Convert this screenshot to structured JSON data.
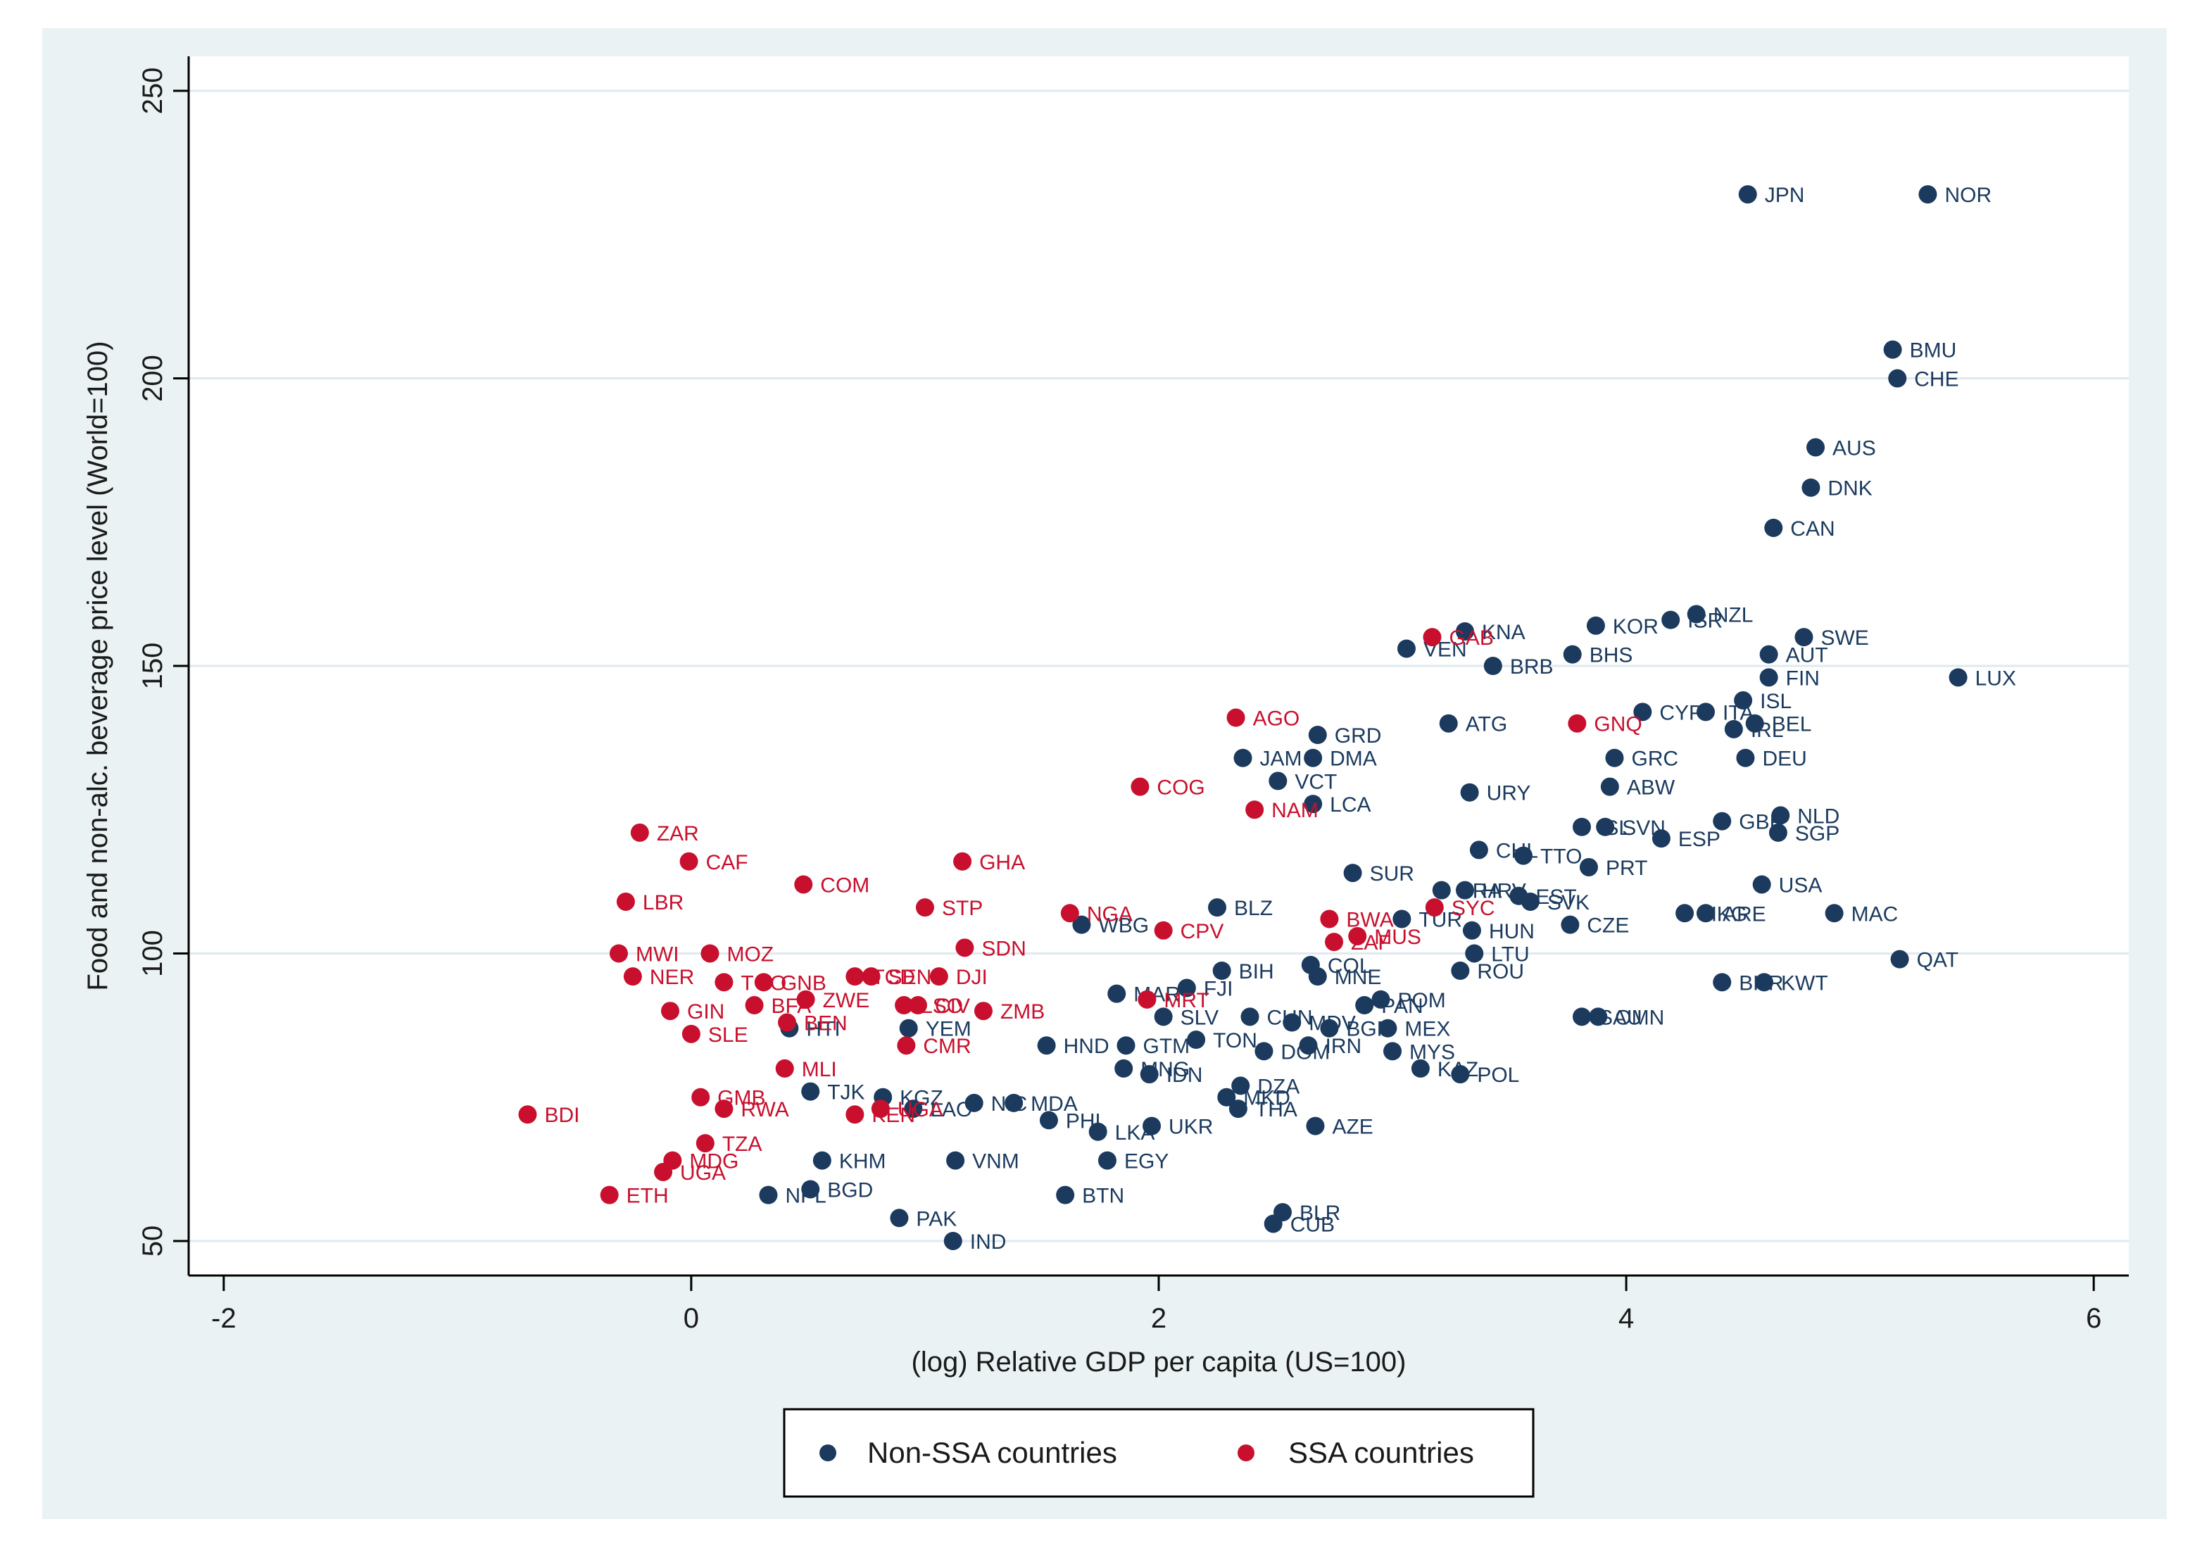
{
  "chart_data": {
    "type": "scatter",
    "title": "",
    "xlabel": "(log) Relative GDP per capita (US=100)",
    "ylabel": "Food and non-alc. beverage price level (World=100)",
    "xlim": [
      -2.15,
      6.15
    ],
    "ylim": [
      44,
      256
    ],
    "xticks": [
      -2,
      0,
      2,
      4,
      6
    ],
    "yticks": [
      50,
      100,
      150,
      200,
      250
    ],
    "grid": "horizontal",
    "legend_position": "bottom",
    "colors": {
      "non_ssa": "#1b3a5e",
      "ssa": "#c8102e",
      "background": "#eaf2f3",
      "grid": "#dfe9ee"
    },
    "series": [
      {
        "name": "Non-SSA countries",
        "color": "#1b3a5e",
        "points": [
          {
            "label": "JPN",
            "x": 4.52,
            "y": 232
          },
          {
            "label": "NOR",
            "x": 5.29,
            "y": 232
          },
          {
            "label": "BMU",
            "x": 5.14,
            "y": 205
          },
          {
            "label": "CHE",
            "x": 5.16,
            "y": 200
          },
          {
            "label": "AUS",
            "x": 4.81,
            "y": 188
          },
          {
            "label": "DNK",
            "x": 4.79,
            "y": 181
          },
          {
            "label": "CAN",
            "x": 4.63,
            "y": 174
          },
          {
            "label": "NZL",
            "x": 4.3,
            "y": 159
          },
          {
            "label": "ISR",
            "x": 4.19,
            "y": 158
          },
          {
            "label": "KOR",
            "x": 3.87,
            "y": 157
          },
          {
            "label": "KNA",
            "x": 3.31,
            "y": 156
          },
          {
            "label": "SWE",
            "x": 4.76,
            "y": 155
          },
          {
            "label": "AUT",
            "x": 4.61,
            "y": 152
          },
          {
            "label": "VEN",
            "x": 3.06,
            "y": 153
          },
          {
            "label": "BHS",
            "x": 3.77,
            "y": 152
          },
          {
            "label": "BRB",
            "x": 3.43,
            "y": 150
          },
          {
            "label": "FIN",
            "x": 4.61,
            "y": 148
          },
          {
            "label": "LUX",
            "x": 5.42,
            "y": 148
          },
          {
            "label": "ISL",
            "x": 4.5,
            "y": 144
          },
          {
            "label": "CYP",
            "x": 4.07,
            "y": 142
          },
          {
            "label": "ITA",
            "x": 4.34,
            "y": 142
          },
          {
            "label": "BEL",
            "x": 4.55,
            "y": 140
          },
          {
            "label": "IRL",
            "x": 4.46,
            "y": 139
          },
          {
            "label": "ATG",
            "x": 3.24,
            "y": 140
          },
          {
            "label": "GRD",
            "x": 2.68,
            "y": 138
          },
          {
            "label": "DEU",
            "x": 4.51,
            "y": 134
          },
          {
            "label": "GRC",
            "x": 3.95,
            "y": 134
          },
          {
            "label": "JAM",
            "x": 2.36,
            "y": 134
          },
          {
            "label": "DMA",
            "x": 2.66,
            "y": 134
          },
          {
            "label": "VCT",
            "x": 2.51,
            "y": 130
          },
          {
            "label": "ABW",
            "x": 3.93,
            "y": 129
          },
          {
            "label": "URY",
            "x": 3.33,
            "y": 128
          },
          {
            "label": "LCA",
            "x": 2.66,
            "y": 126
          },
          {
            "label": "NLD",
            "x": 4.66,
            "y": 124
          },
          {
            "label": "GBR",
            "x": 4.41,
            "y": 123
          },
          {
            "label": "SGP",
            "x": 4.65,
            "y": 121
          },
          {
            "label": "SVN",
            "x": 3.91,
            "y": 122
          },
          {
            "label": "ISL",
            "x": 3.81,
            "y": 122
          },
          {
            "label": "ESP",
            "x": 4.15,
            "y": 120
          },
          {
            "label": "CHL",
            "x": 3.37,
            "y": 118
          },
          {
            "label": "TTO",
            "x": 3.56,
            "y": 117
          },
          {
            "label": "PRT",
            "x": 3.84,
            "y": 115
          },
          {
            "label": "SUR",
            "x": 2.83,
            "y": 114
          },
          {
            "label": "USA",
            "x": 4.58,
            "y": 112
          },
          {
            "label": "BRA",
            "x": 3.21,
            "y": 111
          },
          {
            "label": "HRV",
            "x": 3.31,
            "y": 111
          },
          {
            "label": "EST",
            "x": 3.54,
            "y": 110
          },
          {
            "label": "SVK",
            "x": 3.59,
            "y": 109
          },
          {
            "label": "MAC",
            "x": 4.89,
            "y": 107
          },
          {
            "label": "HKG",
            "x": 4.25,
            "y": 107
          },
          {
            "label": "ARE",
            "x": 4.34,
            "y": 107
          },
          {
            "label": "BLZ",
            "x": 2.25,
            "y": 108
          },
          {
            "label": "TUR",
            "x": 3.04,
            "y": 106
          },
          {
            "label": "CZE",
            "x": 3.76,
            "y": 105
          },
          {
            "label": "HUN",
            "x": 3.34,
            "y": 104
          },
          {
            "label": "WBG",
            "x": 1.67,
            "y": 105
          },
          {
            "label": "LTU",
            "x": 3.35,
            "y": 100
          },
          {
            "label": "QAT",
            "x": 5.17,
            "y": 99
          },
          {
            "label": "COL",
            "x": 2.65,
            "y": 98
          },
          {
            "label": "ROU",
            "x": 3.29,
            "y": 97
          },
          {
            "label": "BIH",
            "x": 2.27,
            "y": 97
          },
          {
            "label": "MNE",
            "x": 2.68,
            "y": 96
          },
          {
            "label": "FJI",
            "x": 2.12,
            "y": 94
          },
          {
            "label": "BHR",
            "x": 4.41,
            "y": 95
          },
          {
            "label": "KWT",
            "x": 4.59,
            "y": 95
          },
          {
            "label": "MAR",
            "x": 1.82,
            "y": 93
          },
          {
            "label": "POM",
            "x": 2.95,
            "y": 92
          },
          {
            "label": "PAN",
            "x": 2.88,
            "y": 91
          },
          {
            "label": "SAU",
            "x": 3.81,
            "y": 89
          },
          {
            "label": "OMN",
            "x": 3.88,
            "y": 89
          },
          {
            "label": "SLV",
            "x": 2.02,
            "y": 89
          },
          {
            "label": "CHN",
            "x": 2.39,
            "y": 89
          },
          {
            "label": "MDV",
            "x": 2.57,
            "y": 88
          },
          {
            "label": "BGR",
            "x": 2.73,
            "y": 87
          },
          {
            "label": "MEX",
            "x": 2.98,
            "y": 87
          },
          {
            "label": "YEM",
            "x": 0.93,
            "y": 87
          },
          {
            "label": "TON",
            "x": 2.16,
            "y": 85
          },
          {
            "label": "HND",
            "x": 1.52,
            "y": 84
          },
          {
            "label": "GTM",
            "x": 1.86,
            "y": 84
          },
          {
            "label": "IRN",
            "x": 2.64,
            "y": 84
          },
          {
            "label": "DOM",
            "x": 2.45,
            "y": 83
          },
          {
            "label": "MYS",
            "x": 3.0,
            "y": 83
          },
          {
            "label": "MNG",
            "x": 1.85,
            "y": 80
          },
          {
            "label": "IDN",
            "x": 1.96,
            "y": 79
          },
          {
            "label": "KAZ",
            "x": 3.12,
            "y": 80
          },
          {
            "label": "POL",
            "x": 3.29,
            "y": 79
          },
          {
            "label": "DZA",
            "x": 2.35,
            "y": 77
          },
          {
            "label": "MKD",
            "x": 2.29,
            "y": 75
          },
          {
            "label": "THA",
            "x": 2.34,
            "y": 73
          },
          {
            "label": "TJK",
            "x": 0.51,
            "y": 76
          },
          {
            "label": "KGZ",
            "x": 0.82,
            "y": 75
          },
          {
            "label": "LAO",
            "x": 0.95,
            "y": 73
          },
          {
            "label": "NIC",
            "x": 1.21,
            "y": 74
          },
          {
            "label": "MDA",
            "x": 1.38,
            "y": 74
          },
          {
            "label": "PHL",
            "x": 1.53,
            "y": 71
          },
          {
            "label": "LKA",
            "x": 1.74,
            "y": 69
          },
          {
            "label": "UKR",
            "x": 1.97,
            "y": 70
          },
          {
            "label": "AZE",
            "x": 2.67,
            "y": 70
          },
          {
            "label": "KHM",
            "x": 0.56,
            "y": 64
          },
          {
            "label": "VNM",
            "x": 1.13,
            "y": 64
          },
          {
            "label": "EGY",
            "x": 1.78,
            "y": 64
          },
          {
            "label": "BGD",
            "x": 0.51,
            "y": 59
          },
          {
            "label": "NPL",
            "x": 0.33,
            "y": 58
          },
          {
            "label": "BTN",
            "x": 1.6,
            "y": 58
          },
          {
            "label": "BLR",
            "x": 2.53,
            "y": 55
          },
          {
            "label": "CUB",
            "x": 2.49,
            "y": 53
          },
          {
            "label": "PAK",
            "x": 0.89,
            "y": 54
          },
          {
            "label": "IND",
            "x": 1.12,
            "y": 50
          },
          {
            "label": "HTI",
            "x": 0.42,
            "y": 87
          }
        ]
      },
      {
        "name": "SSA countries",
        "color": "#c8102e",
        "points": [
          {
            "label": "GAB",
            "x": 3.17,
            "y": 155
          },
          {
            "label": "GNQ",
            "x": 3.79,
            "y": 140
          },
          {
            "label": "AGO",
            "x": 2.33,
            "y": 141
          },
          {
            "label": "COG",
            "x": 1.92,
            "y": 129
          },
          {
            "label": "NAM",
            "x": 2.41,
            "y": 125
          },
          {
            "label": "ZAR",
            "x": -0.22,
            "y": 121
          },
          {
            "label": "CAF",
            "x": -0.01,
            "y": 116
          },
          {
            "label": "GHA",
            "x": 1.16,
            "y": 116
          },
          {
            "label": "COM",
            "x": 0.48,
            "y": 112
          },
          {
            "label": "LBR",
            "x": -0.28,
            "y": 109
          },
          {
            "label": "STP",
            "x": 1.0,
            "y": 108
          },
          {
            "label": "SYC",
            "x": 3.18,
            "y": 108
          },
          {
            "label": "NGA",
            "x": 1.62,
            "y": 107
          },
          {
            "label": "BWA",
            "x": 2.73,
            "y": 106
          },
          {
            "label": "CPV",
            "x": 2.02,
            "y": 104
          },
          {
            "label": "MUS",
            "x": 2.85,
            "y": 103
          },
          {
            "label": "ZAF",
            "x": 2.75,
            "y": 102
          },
          {
            "label": "SDN",
            "x": 1.17,
            "y": 101
          },
          {
            "label": "MWI",
            "x": -0.31,
            "y": 100
          },
          {
            "label": "MOZ",
            "x": 0.08,
            "y": 100
          },
          {
            "label": "NER",
            "x": -0.25,
            "y": 96
          },
          {
            "label": "TGO",
            "x": 0.14,
            "y": 95
          },
          {
            "label": "GNB",
            "x": 0.31,
            "y": 95
          },
          {
            "label": "TCD",
            "x": 0.7,
            "y": 96
          },
          {
            "label": "SEN",
            "x": 0.77,
            "y": 96
          },
          {
            "label": "DJI",
            "x": 1.06,
            "y": 96
          },
          {
            "label": "ZWE",
            "x": 0.49,
            "y": 92
          },
          {
            "label": "BFA",
            "x": 0.27,
            "y": 91
          },
          {
            "label": "LSO",
            "x": 0.91,
            "y": 91
          },
          {
            "label": "CIV",
            "x": 0.97,
            "y": 91
          },
          {
            "label": "ZMB",
            "x": 1.25,
            "y": 90
          },
          {
            "label": "GIN",
            "x": -0.09,
            "y": 90
          },
          {
            "label": "MRT",
            "x": 1.95,
            "y": 92
          },
          {
            "label": "BEN",
            "x": 0.41,
            "y": 88
          },
          {
            "label": "SLE",
            "x": 0.0,
            "y": 86
          },
          {
            "label": "CMR",
            "x": 0.92,
            "y": 84
          },
          {
            "label": "MLI",
            "x": 0.4,
            "y": 80
          },
          {
            "label": "GMB",
            "x": 0.04,
            "y": 75
          },
          {
            "label": "RWA",
            "x": 0.14,
            "y": 73
          },
          {
            "label": "KEN",
            "x": 0.7,
            "y": 72
          },
          {
            "label": "UGA",
            "x": 0.81,
            "y": 73
          },
          {
            "label": "BDI",
            "x": -0.7,
            "y": 72
          },
          {
            "label": "TZA",
            "x": 0.06,
            "y": 67
          },
          {
            "label": "MDG",
            "x": -0.08,
            "y": 64
          },
          {
            "label": "UGA",
            "x": -0.12,
            "y": 62
          },
          {
            "label": "ETH",
            "x": -0.35,
            "y": 58
          }
        ]
      }
    ]
  }
}
